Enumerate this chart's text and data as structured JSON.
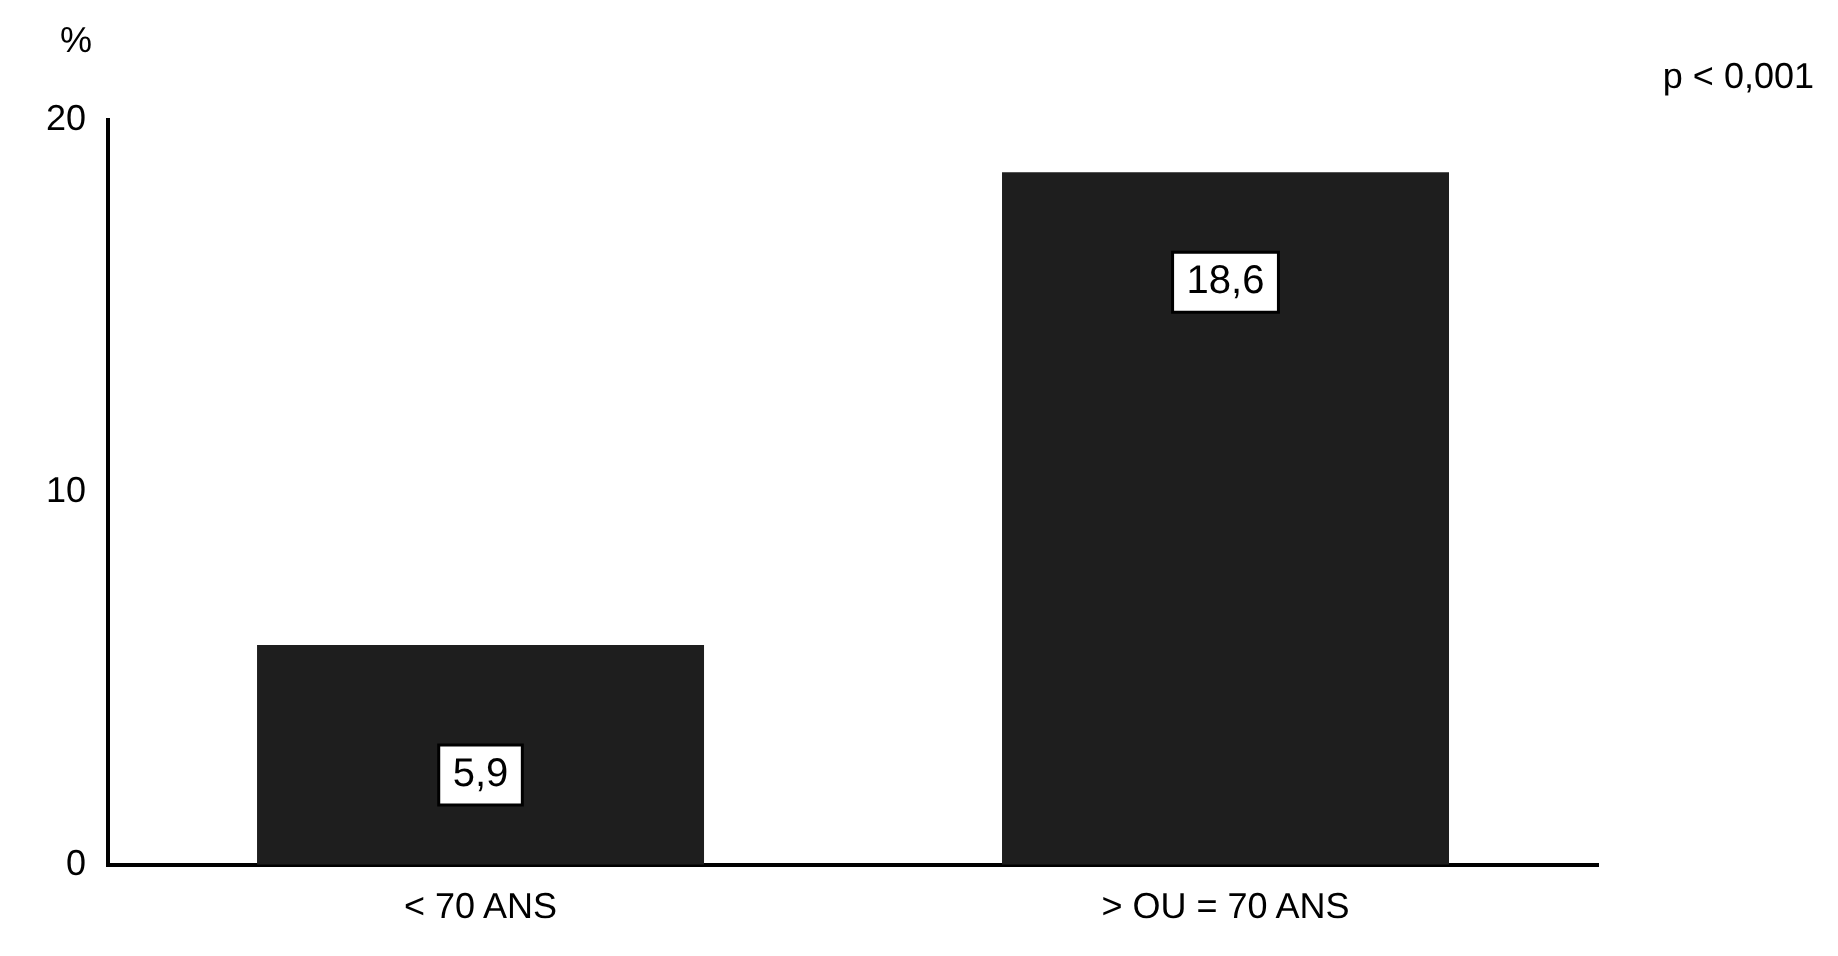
{
  "chart_data": {
    "type": "bar",
    "ylabel": "%",
    "categories": [
      "< 70 ANS",
      "> OU = 70 ANS"
    ],
    "values": [
      5.9,
      18.6
    ],
    "color": "#1e1e1e",
    "value_labels": [
      "5,9",
      "18,6"
    ],
    "ylim": [
      0,
      20
    ],
    "yticks": [
      0,
      10,
      20
    ],
    "grid": false,
    "legend": false,
    "annotations": [
      "p < 0,001"
    ]
  }
}
